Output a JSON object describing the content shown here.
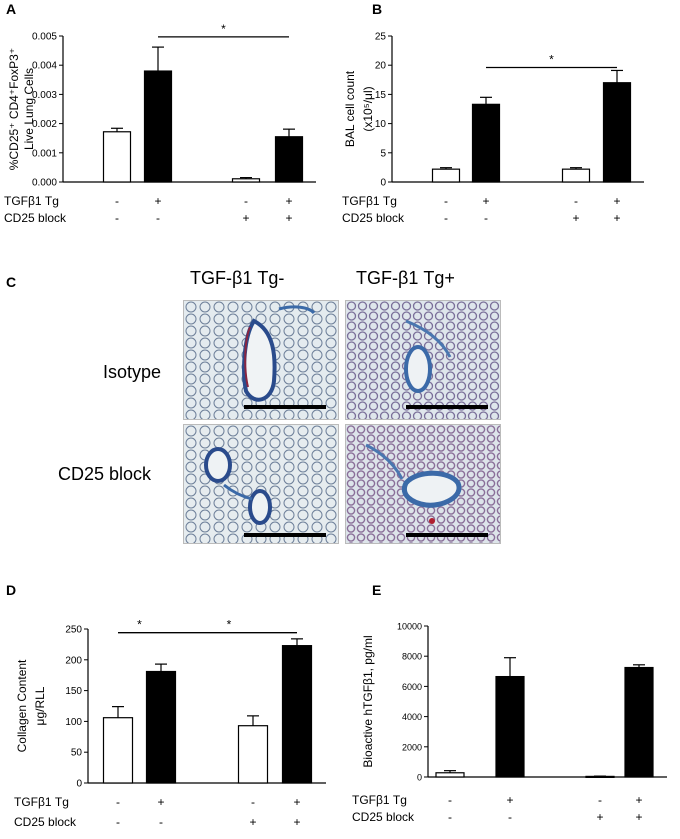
{
  "colors": {
    "open": "#ffffff",
    "filled": "#000000",
    "stroke": "#000000"
  },
  "condition_rows": [
    {
      "label": "TGFβ1 Tg",
      "values": [
        "-",
        "+",
        "-",
        "+"
      ]
    },
    {
      "label": "CD25 block",
      "values": [
        "-",
        "-",
        "+",
        "+"
      ]
    }
  ],
  "chart_data": [
    {
      "panel": "A",
      "type": "bar",
      "ylabel_lines": [
        "%CD25⁺ CD4⁺FoxP3⁺",
        "Live Lung Cells"
      ],
      "ylim": [
        0,
        0.005
      ],
      "yticks": [
        0,
        0.001,
        0.002,
        0.003,
        0.004,
        0.005
      ],
      "ytick_labels": [
        "0.000",
        "0.001",
        "0.002",
        "0.003",
        "0.004",
        "0.005"
      ],
      "bars": [
        {
          "value": 0.00172,
          "error": 0.00012,
          "fill": "open"
        },
        {
          "value": 0.0038,
          "error": 0.00082,
          "fill": "filled"
        },
        {
          "value": 0.00011,
          "error": 4e-05,
          "fill": "open"
        },
        {
          "value": 0.00155,
          "error": 0.00026,
          "fill": "filled"
        }
      ],
      "significance": [
        {
          "from": 1,
          "to": 3,
          "label": "*",
          "y": 0.00497
        }
      ]
    },
    {
      "panel": "B",
      "type": "bar",
      "ylabel_lines": [
        "BAL cell count",
        "(x10⁵/μl)"
      ],
      "ylim": [
        0,
        25
      ],
      "yticks": [
        0,
        5,
        10,
        15,
        20,
        25
      ],
      "ytick_labels": [
        "0",
        "5",
        "10",
        "15",
        "20",
        "25"
      ],
      "bars": [
        {
          "value": 2.2,
          "error": 0.25,
          "fill": "open"
        },
        {
          "value": 13.3,
          "error": 1.2,
          "fill": "filled"
        },
        {
          "value": 2.2,
          "error": 0.25,
          "fill": "open"
        },
        {
          "value": 17.0,
          "error": 2.1,
          "fill": "filled"
        }
      ],
      "significance": [
        {
          "from": 1,
          "to": 3,
          "label": "*",
          "y": 19.6
        }
      ]
    },
    {
      "panel": "D",
      "type": "bar",
      "ylabel_lines": [
        "Collagen Content",
        "μg/RLL"
      ],
      "ylim": [
        0,
        250
      ],
      "yticks": [
        0,
        50,
        100,
        150,
        200,
        250
      ],
      "ytick_labels": [
        "0",
        "50",
        "100",
        "150",
        "200",
        "250"
      ],
      "bars": [
        {
          "value": 106,
          "error": 18,
          "fill": "open"
        },
        {
          "value": 181,
          "error": 12,
          "fill": "filled"
        },
        {
          "value": 93,
          "error": 16,
          "fill": "open"
        },
        {
          "value": 223,
          "error": 11,
          "fill": "filled"
        }
      ],
      "significance": [
        {
          "from": 0,
          "to": 1,
          "label": "*",
          "y": 244
        },
        {
          "from": 1,
          "to": 3,
          "label": "*",
          "y": 244
        }
      ]
    },
    {
      "panel": "E",
      "type": "bar",
      "ylabel_lines": [
        "Bioactive hTGFβ1, pg/ml"
      ],
      "ylim": [
        0,
        10000
      ],
      "yticks": [
        0,
        2000,
        4000,
        6000,
        8000,
        10000
      ],
      "ytick_labels": [
        "0",
        "2000",
        "4000",
        "6000",
        "8000",
        "10000"
      ],
      "bars": [
        {
          "value": 280,
          "error": 140,
          "fill": "open"
        },
        {
          "value": 6650,
          "error": 1250,
          "fill": "filled"
        },
        {
          "value": 40,
          "error": 20,
          "fill": "open"
        },
        {
          "value": 7250,
          "error": 180,
          "fill": "filled"
        }
      ],
      "significance": []
    }
  ],
  "panel_c": {
    "letter": "C",
    "columns": [
      "TGF-β1 Tg-",
      "TGF-β1 Tg+"
    ],
    "rows": [
      "Isotype",
      "CD25 block"
    ]
  }
}
